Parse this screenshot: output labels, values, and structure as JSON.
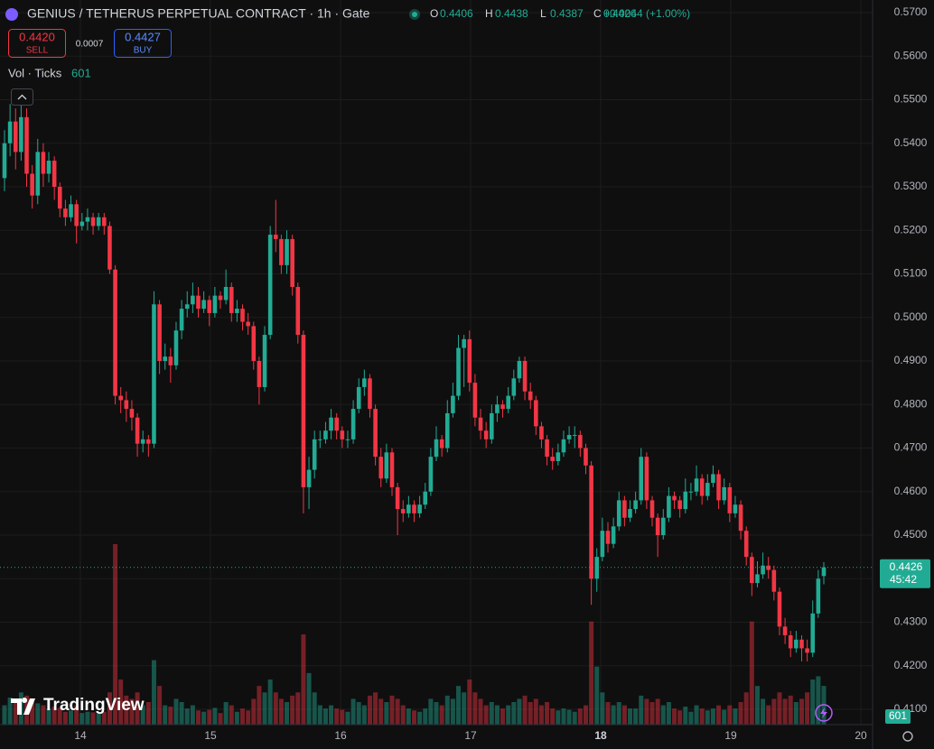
{
  "chart_data": {
    "type": "candlestick",
    "title": "GENIUS / TETHERUS PERPETUAL CONTRACT · 1h · Gate",
    "ohlc_labels": [
      "O",
      "H",
      "L",
      "C"
    ],
    "change": "+0.0044 (+1.00%)",
    "sell": {
      "price": "0.4420",
      "label": "SELL"
    },
    "buy": {
      "price": "0.4427",
      "label": "BUY"
    },
    "spread": "0.0007",
    "volume_label": "Vol · Ticks",
    "countdown": "45:42",
    "logo": "TradingView",
    "up_color": "#22ab94",
    "down_color": "#f23645",
    "ylim": [
      0.41,
      0.57
    ],
    "yticks": [
      {
        "value": 0.41,
        "label": "0.4100"
      },
      {
        "value": 0.42,
        "label": "0.4200"
      },
      {
        "value": 0.43,
        "label": "0.4300"
      },
      {
        "value": 0.44,
        "label": "0.4400"
      },
      {
        "value": 0.45,
        "label": "0.4500"
      },
      {
        "value": 0.46,
        "label": "0.4600"
      },
      {
        "value": 0.47,
        "label": "0.4700"
      },
      {
        "value": 0.48,
        "label": "0.4800"
      },
      {
        "value": 0.49,
        "label": "0.4900"
      },
      {
        "value": 0.5,
        "label": "0.5000"
      },
      {
        "value": 0.51,
        "label": "0.5100"
      },
      {
        "value": 0.52,
        "label": "0.5200"
      },
      {
        "value": 0.53,
        "label": "0.5300"
      },
      {
        "value": 0.54,
        "label": "0.5400"
      },
      {
        "value": 0.55,
        "label": "0.5500"
      },
      {
        "value": 0.56,
        "label": "0.5600"
      },
      {
        "value": 0.57,
        "label": "0.5700"
      }
    ],
    "xtick_labels": [
      "14",
      "15",
      "16",
      "17",
      "18",
      "19",
      "20"
    ],
    "volume_lim": [
      0,
      5600
    ],
    "candles": [
      [
        0.532,
        0.543,
        0.529,
        0.54,
        300
      ],
      [
        0.54,
        0.549,
        0.537,
        0.545,
        420
      ],
      [
        0.545,
        0.548,
        0.534,
        0.538,
        380
      ],
      [
        0.538,
        0.55,
        0.536,
        0.546,
        500
      ],
      [
        0.546,
        0.548,
        0.53,
        0.533,
        450
      ],
      [
        0.533,
        0.535,
        0.525,
        0.528,
        350
      ],
      [
        0.528,
        0.541,
        0.526,
        0.538,
        330
      ],
      [
        0.538,
        0.54,
        0.53,
        0.533,
        300
      ],
      [
        0.533,
        0.538,
        0.531,
        0.536,
        250
      ],
      [
        0.536,
        0.537,
        0.527,
        0.53,
        280
      ],
      [
        0.53,
        0.531,
        0.523,
        0.525,
        260
      ],
      [
        0.525,
        0.527,
        0.521,
        0.523,
        200
      ],
      [
        0.523,
        0.528,
        0.522,
        0.526,
        220
      ],
      [
        0.526,
        0.527,
        0.517,
        0.521,
        300
      ],
      [
        0.521,
        0.524,
        0.52,
        0.522,
        180
      ],
      [
        0.522,
        0.525,
        0.52,
        0.523,
        200
      ],
      [
        0.523,
        0.524,
        0.519,
        0.521,
        190
      ],
      [
        0.521,
        0.524,
        0.52,
        0.523,
        170
      ],
      [
        0.523,
        0.524,
        0.519,
        0.521,
        200
      ],
      [
        0.521,
        0.522,
        0.51,
        0.511,
        500
      ],
      [
        0.511,
        0.512,
        0.48,
        0.482,
        2800
      ],
      [
        0.482,
        0.484,
        0.478,
        0.481,
        700
      ],
      [
        0.481,
        0.483,
        0.476,
        0.479,
        450
      ],
      [
        0.479,
        0.481,
        0.474,
        0.477,
        400
      ],
      [
        0.477,
        0.478,
        0.468,
        0.471,
        500
      ],
      [
        0.471,
        0.474,
        0.469,
        0.472,
        300
      ],
      [
        0.472,
        0.473,
        0.468,
        0.471,
        350
      ],
      [
        0.471,
        0.506,
        0.47,
        0.503,
        1000
      ],
      [
        0.503,
        0.504,
        0.487,
        0.49,
        600
      ],
      [
        0.49,
        0.494,
        0.488,
        0.491,
        300
      ],
      [
        0.491,
        0.493,
        0.485,
        0.489,
        280
      ],
      [
        0.489,
        0.499,
        0.488,
        0.497,
        400
      ],
      [
        0.497,
        0.504,
        0.495,
        0.502,
        350
      ],
      [
        0.502,
        0.506,
        0.5,
        0.503,
        250
      ],
      [
        0.503,
        0.508,
        0.501,
        0.505,
        300
      ],
      [
        0.505,
        0.507,
        0.5,
        0.502,
        220
      ],
      [
        0.502,
        0.506,
        0.501,
        0.504,
        200
      ],
      [
        0.504,
        0.505,
        0.498,
        0.501,
        230
      ],
      [
        0.501,
        0.507,
        0.5,
        0.505,
        260
      ],
      [
        0.505,
        0.506,
        0.502,
        0.504,
        180
      ],
      [
        0.504,
        0.511,
        0.503,
        0.507,
        350
      ],
      [
        0.507,
        0.508,
        0.499,
        0.501,
        300
      ],
      [
        0.501,
        0.504,
        0.499,
        0.502,
        200
      ],
      [
        0.502,
        0.503,
        0.497,
        0.499,
        250
      ],
      [
        0.499,
        0.501,
        0.496,
        0.498,
        220
      ],
      [
        0.498,
        0.499,
        0.488,
        0.49,
        400
      ],
      [
        0.49,
        0.491,
        0.48,
        0.484,
        600
      ],
      [
        0.484,
        0.498,
        0.483,
        0.496,
        500
      ],
      [
        0.496,
        0.521,
        0.495,
        0.519,
        700
      ],
      [
        0.519,
        0.527,
        0.515,
        0.518,
        500
      ],
      [
        0.518,
        0.519,
        0.51,
        0.512,
        400
      ],
      [
        0.512,
        0.52,
        0.51,
        0.518,
        350
      ],
      [
        0.518,
        0.519,
        0.505,
        0.507,
        450
      ],
      [
        0.507,
        0.508,
        0.494,
        0.496,
        500
      ],
      [
        0.496,
        0.497,
        0.455,
        0.461,
        1400
      ],
      [
        0.461,
        0.468,
        0.456,
        0.465,
        800
      ],
      [
        0.465,
        0.474,
        0.463,
        0.472,
        500
      ],
      [
        0.472,
        0.474,
        0.47,
        0.472,
        300
      ],
      [
        0.472,
        0.476,
        0.471,
        0.474,
        250
      ],
      [
        0.474,
        0.479,
        0.472,
        0.477,
        300
      ],
      [
        0.477,
        0.478,
        0.472,
        0.474,
        250
      ],
      [
        0.474,
        0.475,
        0.47,
        0.472,
        230
      ],
      [
        0.472,
        0.474,
        0.47,
        0.472,
        200
      ],
      [
        0.472,
        0.481,
        0.471,
        0.479,
        400
      ],
      [
        0.479,
        0.486,
        0.478,
        0.484,
        350
      ],
      [
        0.484,
        0.488,
        0.482,
        0.486,
        300
      ],
      [
        0.486,
        0.487,
        0.477,
        0.479,
        450
      ],
      [
        0.479,
        0.48,
        0.466,
        0.468,
        500
      ],
      [
        0.468,
        0.47,
        0.461,
        0.463,
        400
      ],
      [
        0.463,
        0.471,
        0.462,
        0.469,
        350
      ],
      [
        0.469,
        0.47,
        0.459,
        0.461,
        450
      ],
      [
        0.461,
        0.462,
        0.45,
        0.456,
        400
      ],
      [
        0.456,
        0.458,
        0.453,
        0.455,
        300
      ],
      [
        0.455,
        0.459,
        0.454,
        0.457,
        250
      ],
      [
        0.457,
        0.458,
        0.453,
        0.455,
        220
      ],
      [
        0.455,
        0.459,
        0.454,
        0.457,
        200
      ],
      [
        0.457,
        0.462,
        0.456,
        0.46,
        250
      ],
      [
        0.46,
        0.47,
        0.459,
        0.468,
        400
      ],
      [
        0.468,
        0.475,
        0.467,
        0.472,
        350
      ],
      [
        0.472,
        0.473,
        0.468,
        0.47,
        300
      ],
      [
        0.47,
        0.481,
        0.469,
        0.478,
        450
      ],
      [
        0.478,
        0.485,
        0.477,
        0.482,
        400
      ],
      [
        0.482,
        0.496,
        0.481,
        0.493,
        600
      ],
      [
        0.493,
        0.496,
        0.484,
        0.495,
        500
      ],
      [
        0.495,
        0.497,
        0.483,
        0.485,
        700
      ],
      [
        0.485,
        0.487,
        0.475,
        0.477,
        500
      ],
      [
        0.477,
        0.479,
        0.472,
        0.474,
        400
      ],
      [
        0.474,
        0.476,
        0.47,
        0.472,
        300
      ],
      [
        0.472,
        0.48,
        0.471,
        0.478,
        350
      ],
      [
        0.478,
        0.482,
        0.476,
        0.48,
        300
      ],
      [
        0.48,
        0.481,
        0.477,
        0.479,
        250
      ],
      [
        0.479,
        0.484,
        0.478,
        0.482,
        300
      ],
      [
        0.482,
        0.488,
        0.481,
        0.486,
        350
      ],
      [
        0.486,
        0.491,
        0.485,
        0.49,
        400
      ],
      [
        0.49,
        0.491,
        0.481,
        0.483,
        450
      ],
      [
        0.483,
        0.485,
        0.479,
        0.481,
        350
      ],
      [
        0.481,
        0.482,
        0.473,
        0.475,
        400
      ],
      [
        0.475,
        0.476,
        0.47,
        0.472,
        300
      ],
      [
        0.472,
        0.473,
        0.466,
        0.468,
        350
      ],
      [
        0.468,
        0.47,
        0.465,
        0.467,
        250
      ],
      [
        0.467,
        0.471,
        0.466,
        0.469,
        220
      ],
      [
        0.469,
        0.474,
        0.468,
        0.472,
        250
      ],
      [
        0.472,
        0.475,
        0.471,
        0.473,
        230
      ],
      [
        0.473,
        0.475,
        0.47,
        0.473,
        200
      ],
      [
        0.473,
        0.474,
        0.468,
        0.47,
        250
      ],
      [
        0.47,
        0.471,
        0.464,
        0.466,
        300
      ],
      [
        0.466,
        0.467,
        0.434,
        0.44,
        1600
      ],
      [
        0.44,
        0.447,
        0.437,
        0.445,
        900
      ],
      [
        0.445,
        0.454,
        0.444,
        0.451,
        500
      ],
      [
        0.451,
        0.453,
        0.446,
        0.448,
        350
      ],
      [
        0.448,
        0.454,
        0.447,
        0.452,
        300
      ],
      [
        0.452,
        0.46,
        0.451,
        0.458,
        350
      ],
      [
        0.458,
        0.459,
        0.452,
        0.454,
        300
      ],
      [
        0.454,
        0.458,
        0.453,
        0.456,
        250
      ],
      [
        0.456,
        0.46,
        0.455,
        0.458,
        250
      ],
      [
        0.458,
        0.47,
        0.457,
        0.468,
        450
      ],
      [
        0.468,
        0.469,
        0.456,
        0.458,
        400
      ],
      [
        0.458,
        0.459,
        0.452,
        0.454,
        350
      ],
      [
        0.454,
        0.455,
        0.445,
        0.45,
        400
      ],
      [
        0.45,
        0.456,
        0.449,
        0.454,
        300
      ],
      [
        0.454,
        0.461,
        0.453,
        0.459,
        350
      ],
      [
        0.459,
        0.46,
        0.456,
        0.458,
        250
      ],
      [
        0.458,
        0.459,
        0.454,
        0.456,
        220
      ],
      [
        0.456,
        0.463,
        0.455,
        0.46,
        280
      ],
      [
        0.46,
        0.462,
        0.458,
        0.46,
        200
      ],
      [
        0.46,
        0.466,
        0.459,
        0.463,
        300
      ],
      [
        0.463,
        0.464,
        0.457,
        0.459,
        250
      ],
      [
        0.459,
        0.464,
        0.458,
        0.462,
        220
      ],
      [
        0.462,
        0.466,
        0.461,
        0.464,
        250
      ],
      [
        0.464,
        0.465,
        0.456,
        0.458,
        300
      ],
      [
        0.458,
        0.463,
        0.457,
        0.461,
        230
      ],
      [
        0.461,
        0.462,
        0.453,
        0.455,
        300
      ],
      [
        0.455,
        0.459,
        0.454,
        0.457,
        250
      ],
      [
        0.457,
        0.458,
        0.449,
        0.451,
        350
      ],
      [
        0.451,
        0.452,
        0.443,
        0.445,
        500
      ],
      [
        0.445,
        0.446,
        0.436,
        0.439,
        1600
      ],
      [
        0.439,
        0.444,
        0.438,
        0.441,
        600
      ],
      [
        0.441,
        0.446,
        0.44,
        0.443,
        400
      ],
      [
        0.443,
        0.445,
        0.44,
        0.442,
        300
      ],
      [
        0.442,
        0.443,
        0.435,
        0.437,
        400
      ],
      [
        0.437,
        0.438,
        0.427,
        0.429,
        500
      ],
      [
        0.429,
        0.431,
        0.425,
        0.427,
        400
      ],
      [
        0.427,
        0.428,
        0.422,
        0.424,
        450
      ],
      [
        0.424,
        0.428,
        0.423,
        0.426,
        350
      ],
      [
        0.426,
        0.427,
        0.421,
        0.424,
        400
      ],
      [
        0.424,
        0.426,
        0.421,
        0.423,
        500
      ],
      [
        0.423,
        0.435,
        0.422,
        0.432,
        700
      ],
      [
        0.432,
        0.442,
        0.431,
        0.44,
        750
      ],
      [
        0.4406,
        0.4438,
        0.4387,
        0.4426,
        601
      ]
    ]
  }
}
